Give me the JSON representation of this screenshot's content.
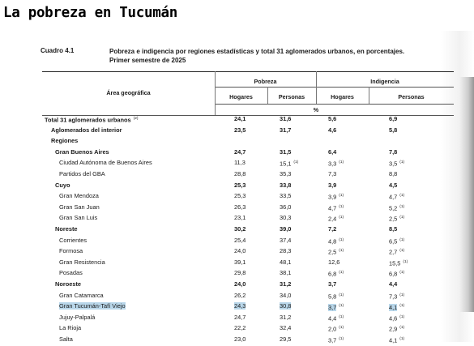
{
  "page_title": "La pobreza en Tucumán",
  "table": {
    "caption_label": "Cuadro 4.1",
    "caption_line1": "Pobreza e indigencia por regiones estadísticas y total 31 aglomerados urbanos, en porcentajes.",
    "caption_line2": "Primer semestre de 2025",
    "col_area": "Área geográfica",
    "group_pobreza": "Pobreza",
    "group_indigencia": "Indigencia",
    "sub_hogares": "Hogares",
    "sub_personas": "Personas",
    "unit": "%",
    "rows": [
      {
        "label": "Total 31 aglomerados urbanos",
        "sup": "(2)",
        "bold": true,
        "indent": 0,
        "v": [
          "24,1",
          "31,6",
          "5,6",
          "6,9"
        ],
        "n": [
          "",
          "",
          "",
          ""
        ]
      },
      {
        "label": "Aglomerados del interior",
        "bold": true,
        "indent": 1,
        "v": [
          "23,5",
          "31,7",
          "4,6",
          "5,8"
        ],
        "n": [
          "",
          "",
          "",
          ""
        ]
      },
      {
        "label": "Regiones",
        "bold": true,
        "indent": 1,
        "v": [
          "",
          "",
          "",
          ""
        ],
        "n": [
          "",
          "",
          "",
          ""
        ]
      },
      {
        "label": "Gran Buenos Aires",
        "bold": true,
        "indent": 2,
        "v": [
          "24,7",
          "31,5",
          "6,4",
          "7,8"
        ],
        "n": [
          "",
          "",
          "",
          ""
        ]
      },
      {
        "label": "Ciudad Autónoma de Buenos Aires",
        "bold": false,
        "indent": 3,
        "v": [
          "11,3",
          "15,1",
          "3,3",
          "3,5"
        ],
        "n": [
          "",
          "(1)",
          "(1)",
          "(1)"
        ]
      },
      {
        "label": "Partidos del GBA",
        "bold": false,
        "indent": 3,
        "v": [
          "28,8",
          "35,3",
          "7,3",
          "8,8"
        ],
        "n": [
          "",
          "",
          "",
          ""
        ]
      },
      {
        "label": "Cuyo",
        "bold": true,
        "indent": 2,
        "v": [
          "25,3",
          "33,8",
          "3,9",
          "4,5"
        ],
        "n": [
          "",
          "",
          "",
          ""
        ]
      },
      {
        "label": "Gran Mendoza",
        "bold": false,
        "indent": 3,
        "v": [
          "25,3",
          "33,5",
          "3,9",
          "4,7"
        ],
        "n": [
          "",
          "",
          "(1)",
          "(1)"
        ]
      },
      {
        "label": "Gran San Juan",
        "bold": false,
        "indent": 3,
        "v": [
          "26,3",
          "36,0",
          "4,7",
          "5,2"
        ],
        "n": [
          "",
          "",
          "(1)",
          "(1)"
        ]
      },
      {
        "label": "Gran San Luis",
        "bold": false,
        "indent": 3,
        "v": [
          "23,1",
          "30,3",
          "2,4",
          "2,5"
        ],
        "n": [
          "",
          "",
          "(1)",
          "(1)"
        ]
      },
      {
        "label": "Noreste",
        "bold": true,
        "indent": 2,
        "v": [
          "30,2",
          "39,0",
          "7,2",
          "8,5"
        ],
        "n": [
          "",
          "",
          "",
          ""
        ]
      },
      {
        "label": "Corrientes",
        "bold": false,
        "indent": 3,
        "v": [
          "25,4",
          "37,4",
          "4,8",
          "6,5"
        ],
        "n": [
          "",
          "",
          "(1)",
          "(1)"
        ]
      },
      {
        "label": "Formosa",
        "bold": false,
        "indent": 3,
        "v": [
          "24,0",
          "28,3",
          "2,5",
          "2,7"
        ],
        "n": [
          "",
          "",
          "(1)",
          "(1)"
        ]
      },
      {
        "label": "Gran Resistencia",
        "bold": false,
        "indent": 3,
        "v": [
          "39,1",
          "48,1",
          "12,6",
          "15,5"
        ],
        "n": [
          "",
          "",
          "",
          "(1)"
        ]
      },
      {
        "label": "Posadas",
        "bold": false,
        "indent": 3,
        "v": [
          "29,8",
          "38,1",
          "6,8",
          "6,8"
        ],
        "n": [
          "",
          "",
          "(1)",
          "(1)"
        ]
      },
      {
        "label": "Noroeste",
        "bold": true,
        "indent": 2,
        "v": [
          "24,0",
          "31,2",
          "3,7",
          "4,4"
        ],
        "n": [
          "",
          "",
          "",
          ""
        ]
      },
      {
        "label": "Gran Catamarca",
        "bold": false,
        "indent": 3,
        "v": [
          "26,2",
          "34,0",
          "5,8",
          "7,3"
        ],
        "n": [
          "",
          "",
          "(1)",
          "(1)"
        ]
      },
      {
        "label": "Gran Tucumán-Tafí Viejo",
        "bold": false,
        "indent": 3,
        "highlight": true,
        "v": [
          "24,3",
          "30,8",
          "3,7",
          "4,1"
        ],
        "n": [
          "",
          "",
          "(1)",
          "(1)"
        ]
      },
      {
        "label": "Jujuy-Palpalá",
        "bold": false,
        "indent": 3,
        "v": [
          "24,7",
          "31,2",
          "4,4",
          "4,6"
        ],
        "n": [
          "",
          "",
          "(1)",
          "(1)"
        ]
      },
      {
        "label": "La Rioja",
        "bold": false,
        "indent": 3,
        "v": [
          "22,2",
          "32,4",
          "2,0",
          "2,9"
        ],
        "n": [
          "",
          "",
          "(1)",
          "(1)"
        ]
      },
      {
        "label": "Salta",
        "bold": false,
        "indent": 3,
        "v": [
          "23,0",
          "29,5",
          "3,7",
          "4,1"
        ],
        "n": [
          "",
          "",
          "(1)",
          "(1)"
        ]
      }
    ]
  }
}
